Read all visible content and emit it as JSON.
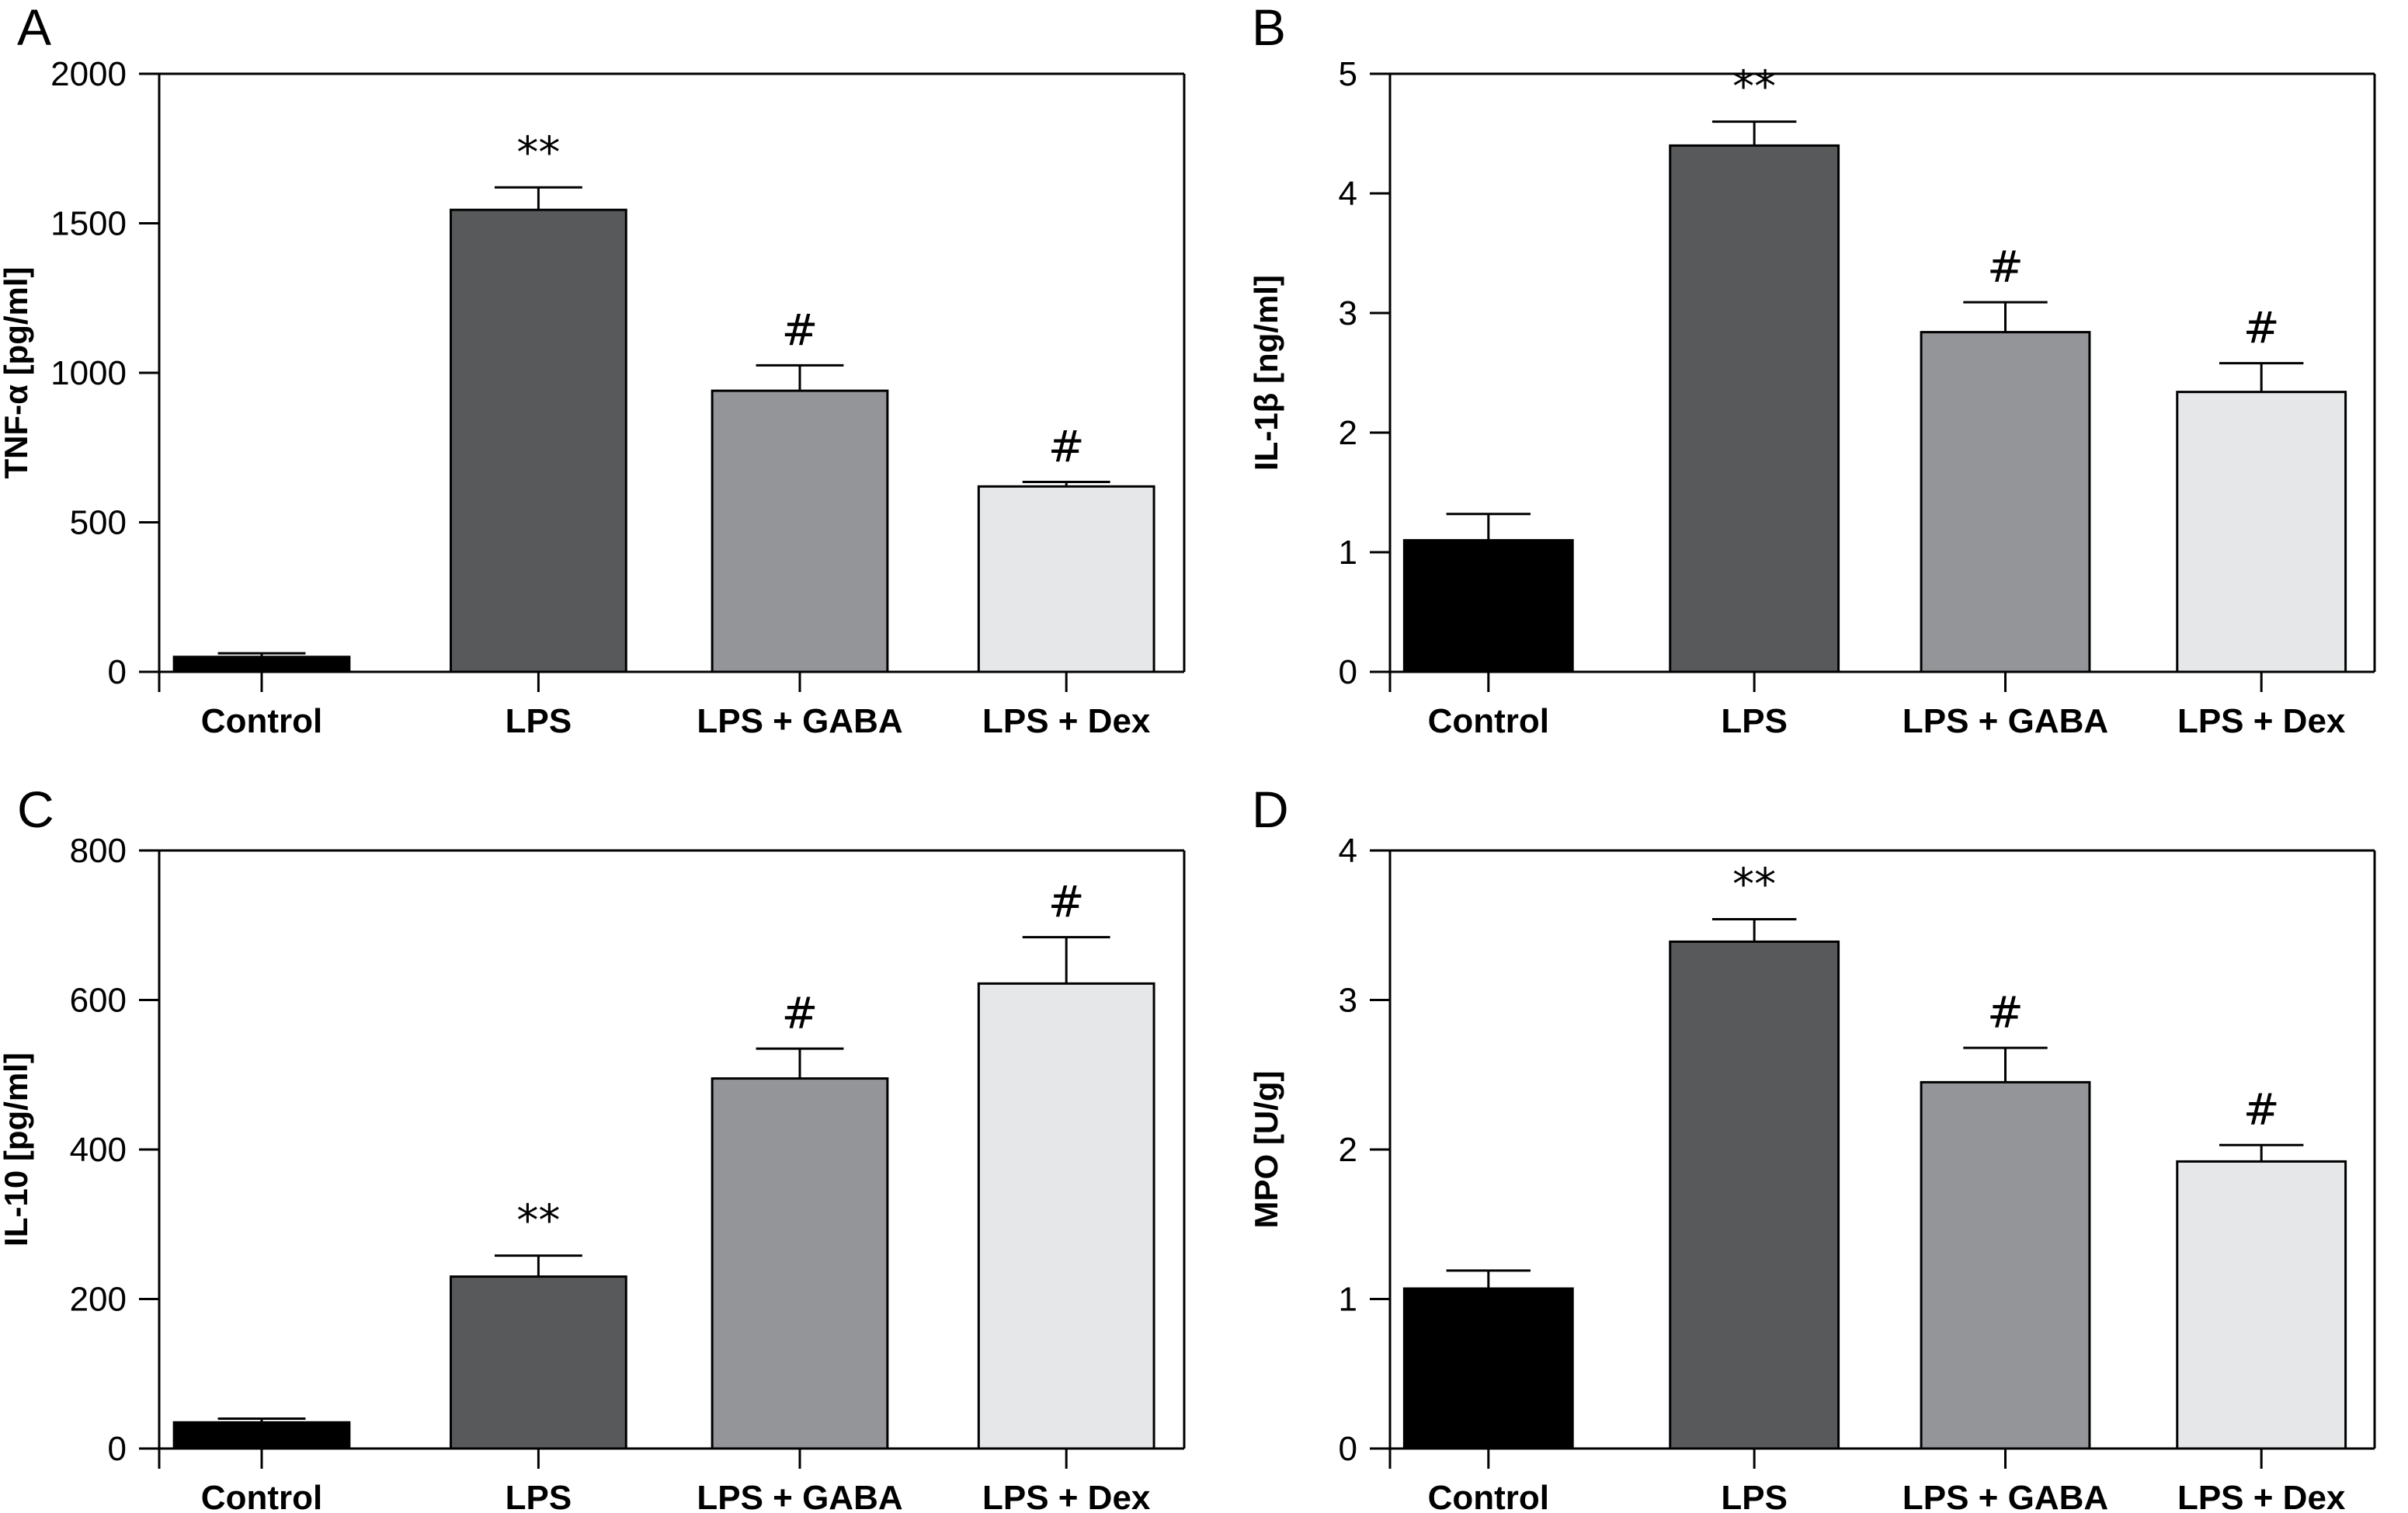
{
  "chart_data": [
    {
      "panel": "A",
      "type": "bar",
      "categories": [
        "Control",
        "LPS",
        "LPS + GABA",
        "LPS + Dex"
      ],
      "values": [
        50,
        1545,
        940,
        620
      ],
      "errors": [
        12,
        75,
        85,
        15
      ],
      "significance": [
        "",
        "**",
        "#",
        "#"
      ],
      "colors": [
        "#000000",
        "#58595b",
        "#939598",
        "#e6e7e8"
      ],
      "ylabel": "TNF-α [pg/ml]",
      "ylim": [
        0,
        2000
      ],
      "yticks": [
        0,
        500,
        1000,
        1500,
        2000
      ],
      "grid": false
    },
    {
      "panel": "B",
      "type": "bar",
      "categories": [
        "Control",
        "LPS",
        "LPS + GABA",
        "LPS + Dex"
      ],
      "values": [
        1.1,
        4.4,
        2.84,
        2.34
      ],
      "errors": [
        0.22,
        0.2,
        0.25,
        0.24
      ],
      "significance": [
        "",
        "**",
        "#",
        "#"
      ],
      "colors": [
        "#000000",
        "#58595b",
        "#939598",
        "#e6e7e8"
      ],
      "ylabel": "IL-1β [ng/ml]",
      "ylim": [
        0,
        5
      ],
      "yticks": [
        0,
        1,
        2,
        3,
        4,
        5
      ],
      "grid": false
    },
    {
      "panel": "C",
      "type": "bar",
      "categories": [
        "Control",
        "LPS",
        "LPS + GABA",
        "LPS + Dex"
      ],
      "values": [
        35,
        230,
        495,
        622
      ],
      "errors": [
        5,
        28,
        40,
        62
      ],
      "significance": [
        "",
        "**",
        "#",
        "#"
      ],
      "colors": [
        "#000000",
        "#58595b",
        "#939598",
        "#e6e7e8"
      ],
      "ylabel": "IL-10 [pg/ml]",
      "ylim": [
        0,
        800
      ],
      "yticks": [
        0,
        200,
        400,
        600,
        800
      ],
      "grid": false
    },
    {
      "panel": "D",
      "type": "bar",
      "categories": [
        "Control",
        "LPS",
        "LPS + GABA",
        "LPS + Dex"
      ],
      "values": [
        1.07,
        3.39,
        2.45,
        1.92
      ],
      "errors": [
        0.12,
        0.15,
        0.23,
        0.11
      ],
      "significance": [
        "",
        "**",
        "#",
        "#"
      ],
      "colors": [
        "#000000",
        "#58595b",
        "#939598",
        "#e6e7e8"
      ],
      "ylabel": "MPO [U/g]",
      "ylim": [
        0,
        4
      ],
      "yticks": [
        0,
        1,
        2,
        3,
        4
      ],
      "grid": false
    }
  ]
}
